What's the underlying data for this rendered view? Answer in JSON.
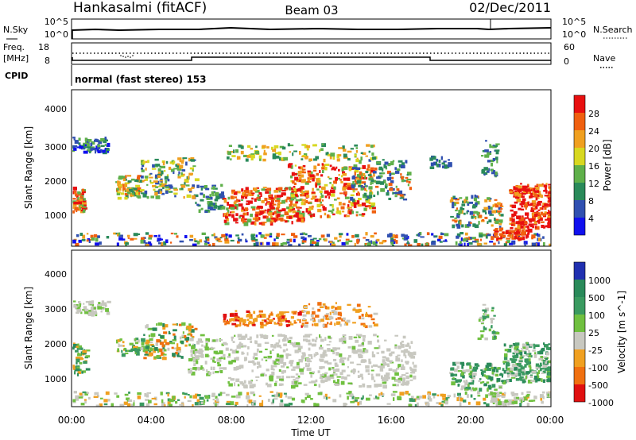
{
  "header": {
    "station": "Hankasalmi (fitACF)",
    "beam": "Beam 03",
    "date": "02/Dec/2011"
  },
  "noise_panel": {
    "left_label": "N.Sky",
    "right_label": "N.Search",
    "left_ticks": [
      "10^5",
      "10^0"
    ],
    "right_ticks": [
      "10^5",
      "10^0"
    ]
  },
  "freq_panel": {
    "left_label_1": "Freq.",
    "left_label_2": "[MHz]",
    "left_ticks": [
      "18",
      "8"
    ],
    "right_label": "Nave",
    "right_ticks": [
      "60",
      "0"
    ]
  },
  "cpid": {
    "label": "CPID",
    "value": "normal (fast stereo) 153"
  },
  "x_axis": {
    "label": "Time UT",
    "ticks": [
      "00:00",
      "04:00",
      "08:00",
      "12:00",
      "16:00",
      "20:00",
      "00:00"
    ]
  },
  "chart_data": [
    {
      "type": "heatmap",
      "title": "",
      "ylabel": "Slant Range [km]",
      "yticks": [
        "1000",
        "2000",
        "3000",
        "4000"
      ],
      "colorbar": {
        "label": "Power [dB]",
        "ticks": [
          "4",
          "8",
          "12",
          "16",
          "20",
          "24",
          "28"
        ],
        "colors": [
          "#1010ee",
          "#3050b0",
          "#2a8a5a",
          "#5fb04a",
          "#d8d820",
          "#f0a020",
          "#f06010",
          "#e81010"
        ]
      }
    },
    {
      "type": "heatmap",
      "title": "",
      "ylabel": "Slant Range [km]",
      "yticks": [
        "1000",
        "2000",
        "3000",
        "4000"
      ],
      "colorbar": {
        "label": "Velocity [m s^-1]",
        "ticks": [
          "1000",
          "500",
          "100",
          "25",
          "-25",
          "-100",
          "-500",
          "-1000"
        ],
        "colors": [
          "#2030b0",
          "#2a8a5a",
          "#3a9a60",
          "#70c040",
          "#c8c8c0",
          "#f0a020",
          "#f07010",
          "#e01010"
        ]
      }
    }
  ]
}
